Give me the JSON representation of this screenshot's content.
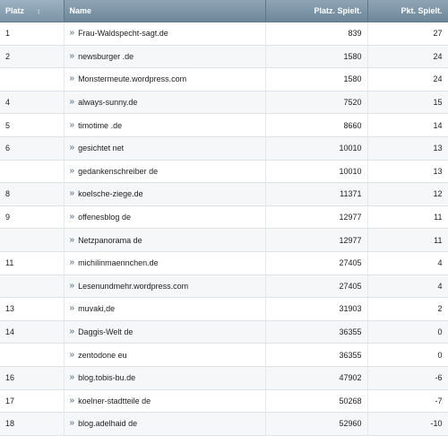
{
  "headers": {
    "platz": "Platz",
    "name": "Name",
    "platz_spielt": "Platz. Spielt.",
    "pkt_spielt": "Pkt. Spielt."
  },
  "rows": [
    {
      "platz": "1",
      "name": "Frau-Waldspecht-sagt.de",
      "platz_spielt": "839",
      "pkt_spielt": "27"
    },
    {
      "platz": "2",
      "name": "newsburger .de",
      "platz_spielt": "1580",
      "pkt_spielt": "24"
    },
    {
      "platz": "",
      "name": "Monstermeute.wordpress.com",
      "platz_spielt": "1580",
      "pkt_spielt": "24"
    },
    {
      "platz": "4",
      "name": "always-sunny.de",
      "platz_spielt": "7520",
      "pkt_spielt": "15"
    },
    {
      "platz": "5",
      "name": "timotime .de",
      "platz_spielt": "8660",
      "pkt_spielt": "14"
    },
    {
      "platz": "6",
      "name": "gesichtet net",
      "platz_spielt": "10010",
      "pkt_spielt": "13"
    },
    {
      "platz": "",
      "name": "gedankenschreiber de",
      "platz_spielt": "10010",
      "pkt_spielt": "13"
    },
    {
      "platz": "8",
      "name": "koelsche-ziege.de",
      "platz_spielt": "11371",
      "pkt_spielt": "12"
    },
    {
      "platz": "9",
      "name": "offenesblog de",
      "platz_spielt": "12977",
      "pkt_spielt": "11"
    },
    {
      "platz": "",
      "name": "Netzpanorama de",
      "platz_spielt": "12977",
      "pkt_spielt": "11"
    },
    {
      "platz": "11",
      "name": "michilinmaennchen.de",
      "platz_spielt": "27405",
      "pkt_spielt": "4"
    },
    {
      "platz": "",
      "name": "Lesenundmehr.wordpress.com",
      "platz_spielt": "27405",
      "pkt_spielt": "4"
    },
    {
      "platz": "13",
      "name": "muvaki,de",
      "platz_spielt": "31903",
      "pkt_spielt": "2"
    },
    {
      "platz": "14",
      "name": "Daggis-Welt de",
      "platz_spielt": "36355",
      "pkt_spielt": "0"
    },
    {
      "platz": "",
      "name": "zentodone eu",
      "platz_spielt": "36355",
      "pkt_spielt": "0"
    },
    {
      "platz": "16",
      "name": "blog.tobis-bu.de",
      "platz_spielt": "47902",
      "pkt_spielt": "-6"
    },
    {
      "platz": "17",
      "name": "koelner-stadtteile de",
      "platz_spielt": "50268",
      "pkt_spielt": "-7"
    },
    {
      "platz": "18",
      "name": "blog.adelhaid de",
      "platz_spielt": "52960",
      "pkt_spielt": "-10"
    }
  ],
  "icons": {
    "sort": "sort-arrow-icon",
    "row_link": "double-chevron-right-icon"
  }
}
